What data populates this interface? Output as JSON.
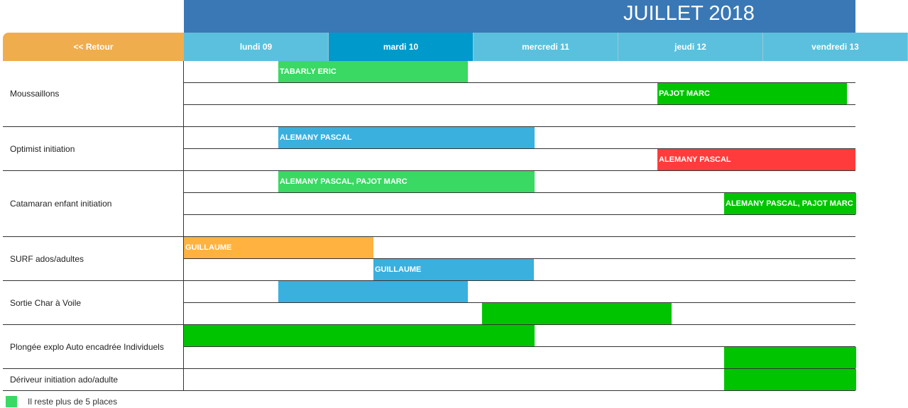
{
  "header": {
    "month_title": "JUILLET 2018",
    "back_label": "<< Retour"
  },
  "days": [
    {
      "label": "lundi 09",
      "selected": false
    },
    {
      "label": "mardi 10",
      "selected": true
    },
    {
      "label": "mercredi 11",
      "selected": false
    },
    {
      "label": "jeudi 12",
      "selected": false
    },
    {
      "label": "vendredi 13",
      "selected": false
    }
  ],
  "colors": {
    "light_green": "#39d963",
    "green": "#00c400",
    "blue": "#3ab0de",
    "red": "#ff3b3b",
    "orange": "#ffb23f"
  },
  "activities": [
    {
      "name": "Moussaillons",
      "rows": [
        [
          {
            "label": "TABARLY ERIC",
            "color": "light_green",
            "start": 0.65,
            "end": 1.96
          }
        ],
        [
          {
            "label": "PAJOT MARC",
            "color": "green",
            "start": 3.27,
            "end": 4.58
          }
        ],
        []
      ]
    },
    {
      "name": "Optimist initiation",
      "rows": [
        [
          {
            "label": "ALEMANY PASCAL",
            "color": "blue",
            "start": 0.65,
            "end": 2.42
          }
        ],
        [
          {
            "label": "ALEMANY PASCAL",
            "color": "red",
            "start": 3.27,
            "end": 4.64
          }
        ]
      ]
    },
    {
      "name": "Catamaran enfant initiation",
      "rows": [
        [
          {
            "label": "ALEMANY PASCAL, PAJOT MARC",
            "color": "light_green",
            "start": 0.65,
            "end": 2.42
          }
        ],
        [
          {
            "label": "ALEMANY PASCAL, PAJOT MARC",
            "color": "green",
            "start": 3.73,
            "end": 4.64
          }
        ],
        []
      ]
    },
    {
      "name": "SURF ados/adultes",
      "rows": [
        [
          {
            "label": "GUILLAUME",
            "color": "orange",
            "start": 0.0,
            "end": 1.31
          }
        ],
        [
          {
            "label": "GUILLAUME",
            "color": "blue",
            "start": 1.31,
            "end": 2.42
          }
        ]
      ]
    },
    {
      "name": "Sortie Char à Voile",
      "rows": [
        [
          {
            "label": "",
            "color": "blue",
            "start": 0.65,
            "end": 1.96
          }
        ],
        [
          {
            "label": "",
            "color": "green",
            "start": 2.06,
            "end": 3.37
          }
        ]
      ]
    },
    {
      "name": "Plongée explo Auto encadrée Individuels",
      "rows": [
        [
          {
            "label": "",
            "color": "green",
            "start": 0.0,
            "end": 2.42
          }
        ],
        [
          {
            "label": "",
            "color": "green",
            "start": 3.73,
            "end": 4.64
          }
        ]
      ]
    },
    {
      "name": "Dériveur initiation ado/adulte",
      "rows": [
        [
          {
            "label": "",
            "color": "green",
            "start": 3.73,
            "end": 4.64
          }
        ]
      ]
    }
  ],
  "legend": {
    "text": "Il reste plus de 5 places",
    "color": "light_green"
  }
}
